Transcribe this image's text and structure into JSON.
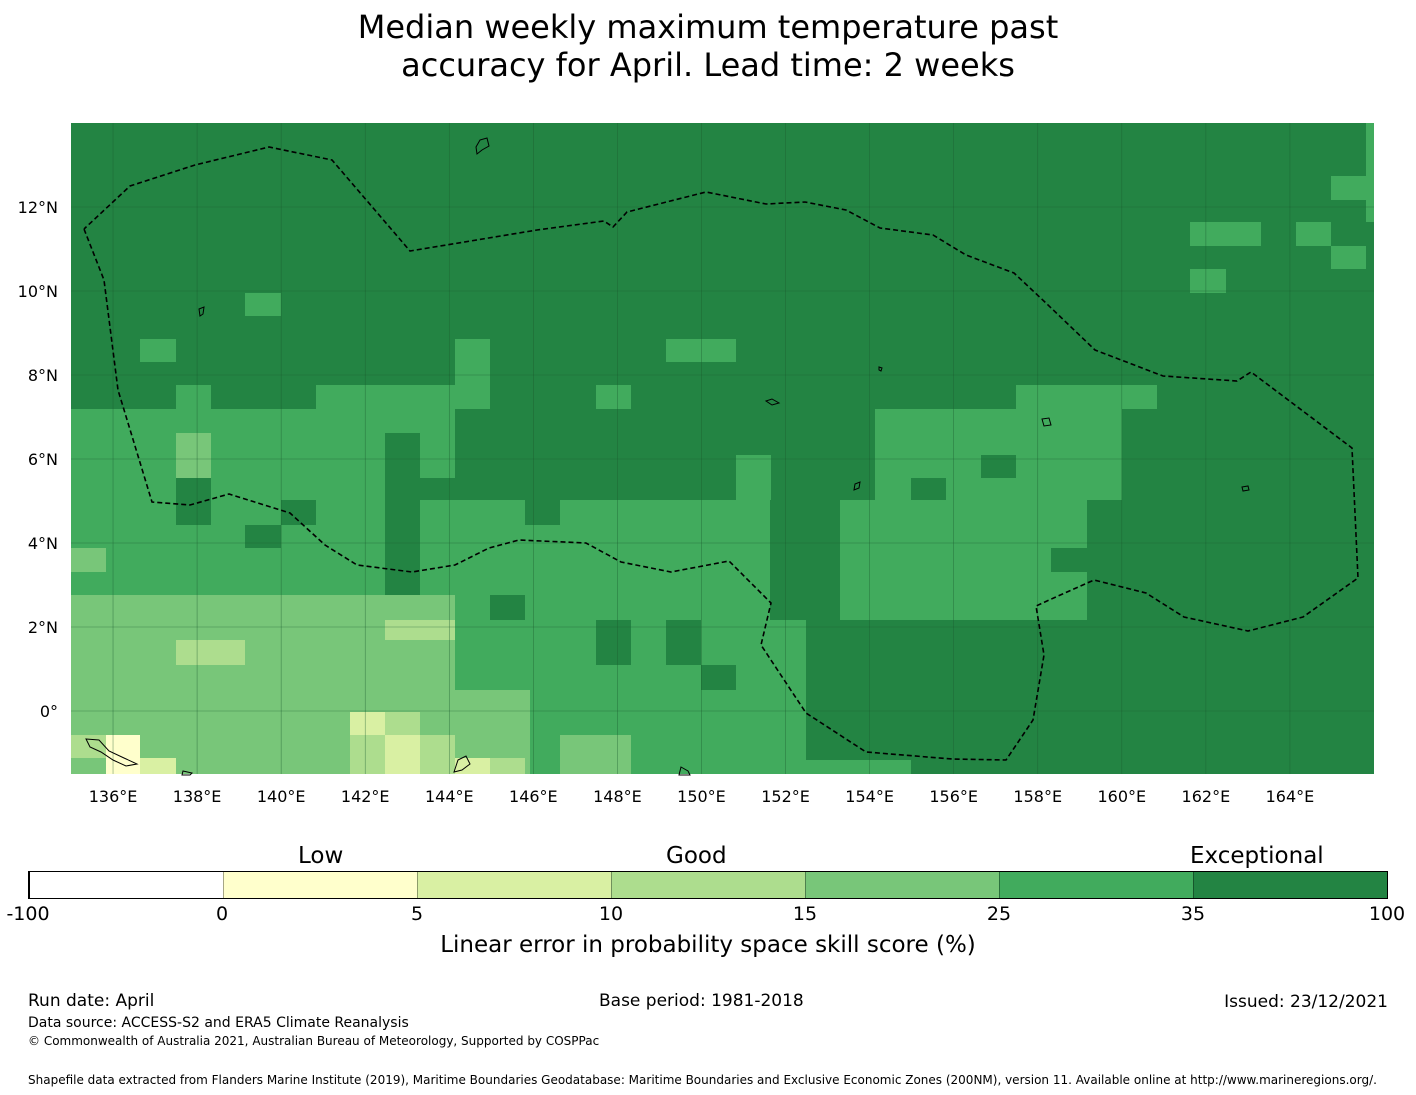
{
  "title": {
    "line1": "Median weekly maximum temperature past",
    "line2": "accuracy for April. Lead time: 2 weeks"
  },
  "map": {
    "lon_labels": [
      "136°E",
      "138°E",
      "140°E",
      "142°E",
      "144°E",
      "146°E",
      "148°E",
      "150°E",
      "152°E",
      "154°E",
      "156°E",
      "158°E",
      "160°E",
      "162°E",
      "164°E"
    ],
    "lat_labels": [
      "12°N",
      "10°N",
      "8°N",
      "6°N",
      "4°N",
      "2°N",
      "0°"
    ],
    "lon_range": [
      135.0,
      166.0
    ],
    "lat_range": [
      -1.5,
      14.0
    ],
    "grid_lons": [
      136,
      138,
      140,
      142,
      144,
      146,
      148,
      150,
      152,
      154,
      156,
      158,
      160,
      162,
      164
    ],
    "grid_lats": [
      12,
      10,
      8,
      6,
      4,
      2,
      0
    ],
    "boundary_style": "dashed black",
    "gridlines": true
  },
  "colorbar": {
    "categories": [
      "Low",
      "Good",
      "Exceptional"
    ],
    "ticks": [
      "-100",
      "0",
      "5",
      "10",
      "15",
      "25",
      "35",
      "100"
    ],
    "colors": [
      "#ffffff",
      "#ffffcc",
      "#d9f0a3",
      "#addd8e",
      "#78c679",
      "#41ab5d",
      "#238443"
    ],
    "label": "Linear error in probability space skill score (%)"
  },
  "footer": {
    "run_date": "Run date: April",
    "base_period": "Base period: 1981-2018",
    "issued": "Issued: 23/12/2021",
    "data_source": "Data source: ACCESS-S2 and ERA5 Climate Reanalysis",
    "copyright": "© Commonwealth of Australia 2021, Australian Bureau of Meteorology, Supported by COSPPac",
    "shapefile": "Shapefile data extracted from Flanders Marine Institute (2019), Maritime Boundaries Geodatabase: Maritime Boundaries and Exclusive Economic Zones (200NM), version 11. Available online at http://www.marineregions.org/."
  }
}
